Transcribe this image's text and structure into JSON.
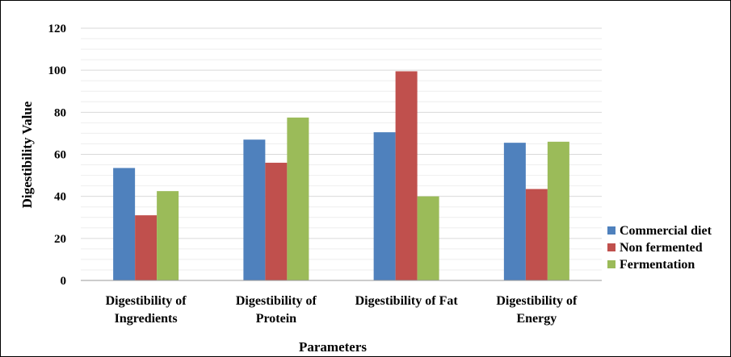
{
  "chart_data": {
    "type": "bar",
    "title": "",
    "xlabel": "Parameters",
    "ylabel": "Digestibility  Value",
    "ylim": [
      0,
      120
    ],
    "yticks": [
      0,
      20,
      40,
      60,
      80,
      100,
      120
    ],
    "grid": true,
    "legend_position": "right",
    "categories": [
      [
        "Digestibility of",
        "Ingredients"
      ],
      [
        "Digestibility of",
        "Protein"
      ],
      [
        "Digestibility of Fat"
      ],
      [
        "Digestibility of",
        "Energy"
      ]
    ],
    "series": [
      {
        "name": "Commercial diet",
        "color": "#4F81BD",
        "values": [
          53.5,
          67,
          70.5,
          65.5
        ]
      },
      {
        "name": "Non fermented",
        "color": "#C0504D",
        "values": [
          31,
          56,
          99.5,
          43.5
        ]
      },
      {
        "name": "Fermentation",
        "color": "#9BBB59",
        "values": [
          42.5,
          77.5,
          40,
          66
        ]
      }
    ]
  }
}
